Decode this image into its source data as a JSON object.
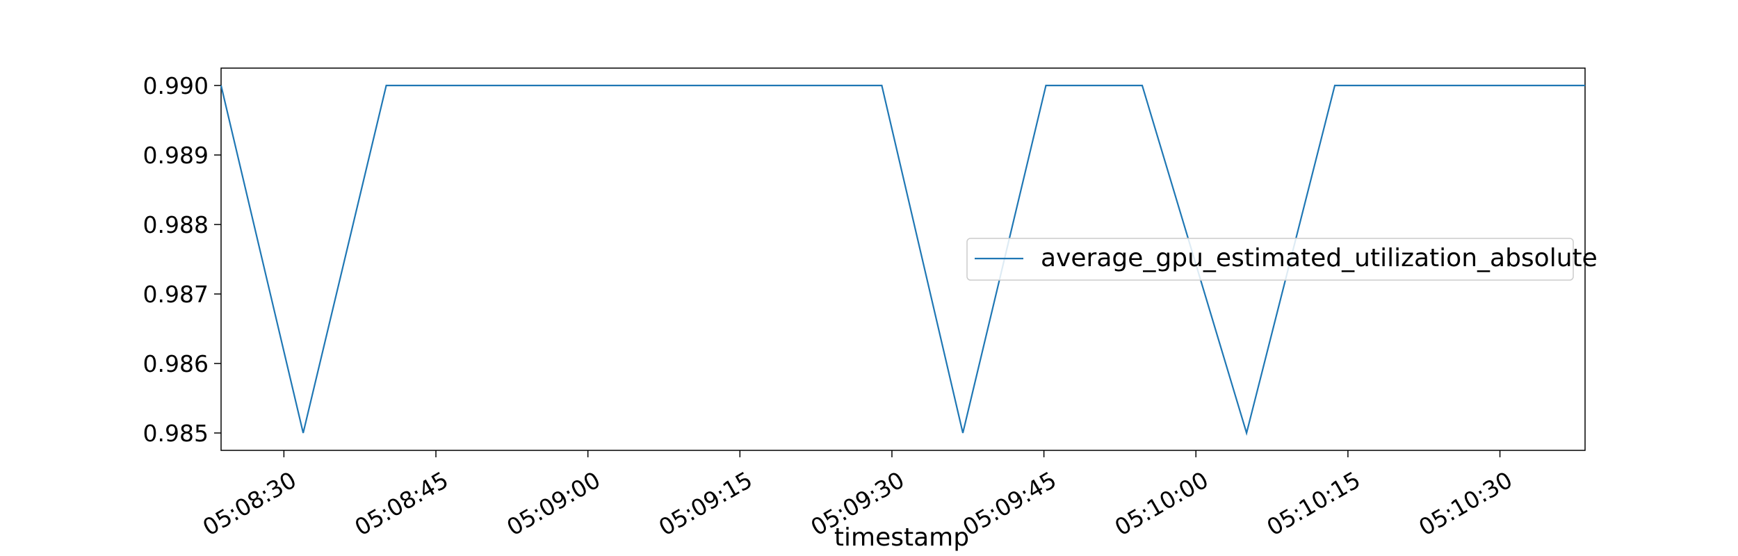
{
  "chart_data": {
    "type": "line",
    "title": "",
    "xlabel": "timestamp",
    "ylabel": "",
    "x_tick_labels": [
      "05:08:30",
      "05:08:45",
      "05:09:00",
      "05:09:15",
      "05:09:30",
      "05:09:45",
      "05:10:00",
      "05:10:15",
      "05:10:30"
    ],
    "x_tick_seconds": [
      30,
      45,
      60,
      75,
      90,
      105,
      120,
      135,
      150
    ],
    "y_tick_labels": [
      "0.990",
      "0.989",
      "0.988",
      "0.987",
      "0.986",
      "0.985"
    ],
    "y_tick_values": [
      0.99,
      0.989,
      0.988,
      0.987,
      0.986,
      0.985
    ],
    "xlim": [
      23.8,
      158.4
    ],
    "ylim": [
      0.98475,
      0.99025
    ],
    "grid": false,
    "legend_position": "center-right",
    "color": "#1f77b4",
    "series": [
      {
        "name": "average_gpu_estimated_utilization_absolute",
        "x": [
          23.8,
          31.9,
          40.1,
          72.9,
          89.0,
          97.0,
          105.2,
          114.7,
          125.0,
          133.7,
          158.4
        ],
        "y": [
          0.99,
          0.985,
          0.99,
          0.99,
          0.99,
          0.985,
          0.99,
          0.99,
          0.985,
          0.99,
          0.99
        ]
      }
    ]
  }
}
